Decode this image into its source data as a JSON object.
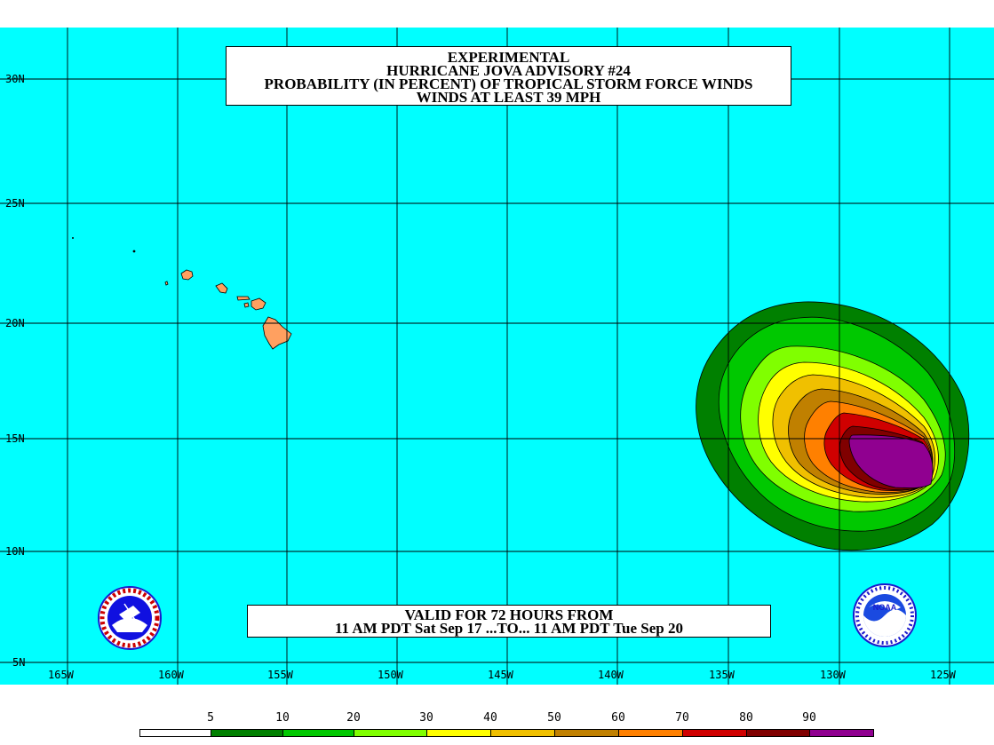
{
  "title": {
    "line1": "EXPERIMENTAL",
    "line2": "HURRICANE JOVA ADVISORY #24",
    "line3": "PROBABILITY (IN PERCENT) OF TROPICAL STORM FORCE WINDS",
    "line4": "WINDS AT LEAST 39 MPH"
  },
  "valid": {
    "line1": "VALID FOR 72 HOURS FROM",
    "line2": "11 AM PDT Sat Sep 17 ...TO... 11 AM PDT Tue Sep 20"
  },
  "lat_labels": [
    "30N",
    "25N",
    "20N",
    "15N",
    "10N",
    "5N"
  ],
  "lon_labels": [
    "165W",
    "160W",
    "155W",
    "150W",
    "145W",
    "140W",
    "135W",
    "130W",
    "125W"
  ],
  "legend": {
    "values": [
      "5",
      "10",
      "20",
      "30",
      "40",
      "50",
      "60",
      "70",
      "80",
      "90"
    ],
    "colors": [
      "#ffffff",
      "#008000",
      "#00c800",
      "#80ff00",
      "#ffff00",
      "#f0c000",
      "#c08000",
      "#ff8000",
      "#d00000",
      "#800000",
      "#900090"
    ]
  },
  "colors": {
    "ocean": "#00ffff",
    "land": "#ffa060",
    "grid": "#000000"
  },
  "logos": {
    "left": "nws-logo",
    "right": "noaa-logo"
  },
  "logo_text": {
    "noaa": "NOAA"
  }
}
